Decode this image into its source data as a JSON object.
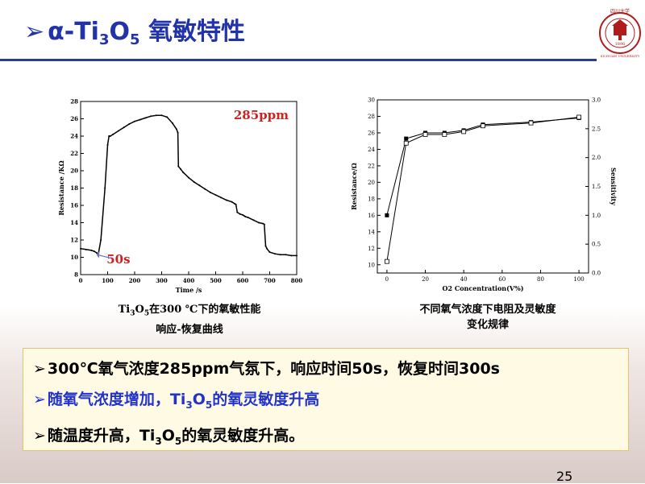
{
  "slide": {
    "title_arrow": "➢",
    "title_prefix": "α-Ti",
    "title_sub1": "3",
    "title_mid": "O",
    "title_sub2": "5",
    "title_suffix": " 氧敏特性",
    "page_number": "25"
  },
  "logo": {
    "text": "四川大学",
    "year": "1896",
    "ring_text": "SICHUAN UNIVERSITY"
  },
  "colors": {
    "title": "#2233aa",
    "rule": "#2b3d9b",
    "highlight": "#cc2222",
    "blue_text": "#2233cc",
    "box_bg": "#fefae3",
    "box_border": "#e8c070"
  },
  "captions": {
    "chart1": {
      "part1": "Ti",
      "sub1": "3",
      "part2": "O",
      "sub2": "5",
      "line1_rest": "在300 ℃下的氧敏性能",
      "line2": "响应-恢复曲线"
    },
    "chart2": {
      "line1": "不同氧气浓度下电阻及灵敏度",
      "line2": "变化规律"
    }
  },
  "bullets": [
    {
      "mark": "➢",
      "text": "300℃氧气浓度285ppm气氛下，响应时间50s，恢复时间300s"
    },
    {
      "mark": "➢",
      "text_a": "随氧气浓度增加，Ti",
      "sub_a": "3",
      "text_b": "O",
      "sub_b": "5",
      "text_c": "的氧灵敏度升高"
    },
    {
      "mark": "➢",
      "text_a": "随温度升高，Ti",
      "sub_a": "3",
      "text_b": "O",
      "sub_b": "5",
      "text_c": "的氧灵敏度升高。"
    }
  ],
  "chart_data": [
    {
      "type": "line",
      "xlabel": "Time /s",
      "ylabel": "Resistance /KΩ",
      "xlim": [
        0,
        800
      ],
      "ylim": [
        8,
        28
      ],
      "xticks": [
        0,
        100,
        200,
        300,
        400,
        500,
        600,
        700,
        800
      ],
      "yticks": [
        8,
        10,
        12,
        14,
        16,
        18,
        20,
        22,
        24,
        26,
        28
      ],
      "annotations": [
        {
          "text": "285ppm",
          "color": "#cc2222"
        },
        {
          "text": "50s",
          "color": "#cc2222"
        }
      ],
      "series": [
        {
          "x": [
            0,
            20,
            40,
            50,
            60,
            65,
            75,
            90,
            100,
            105,
            110,
            120,
            140,
            160,
            180,
            200,
            220,
            240,
            260,
            280,
            300,
            320,
            340,
            355,
            360,
            362,
            370,
            380,
            400,
            420,
            440,
            460,
            480,
            500,
            520,
            540,
            560,
            570,
            575,
            580,
            590,
            600,
            605,
            610,
            620,
            640,
            660,
            675,
            680,
            685,
            690,
            700,
            720,
            740,
            760,
            780,
            800
          ],
          "y": [
            11.0,
            10.9,
            10.8,
            10.7,
            10.5,
            10.3,
            12.0,
            18.0,
            23.0,
            24.0,
            24.0,
            24.2,
            24.6,
            25.0,
            25.4,
            25.7,
            25.9,
            26.1,
            26.3,
            26.4,
            26.4,
            26.2,
            25.5,
            24.8,
            24.4,
            20.5,
            20.2,
            19.8,
            19.2,
            18.7,
            18.3,
            17.9,
            17.5,
            17.2,
            16.9,
            16.6,
            16.4,
            16.2,
            16.1,
            15.2,
            15.0,
            14.9,
            14.8,
            14.7,
            14.6,
            14.3,
            14.0,
            13.9,
            13.8,
            11.3,
            11.0,
            10.6,
            10.4,
            10.3,
            10.3,
            10.2,
            10.2
          ]
        }
      ]
    },
    {
      "type": "line",
      "xlabel": "O2 Concentration(V%)",
      "ylabel": "Resistance/Ω",
      "y2label": "Sensitivity",
      "xlim": [
        -5,
        105
      ],
      "ylim": [
        9,
        30
      ],
      "y2lim": [
        0.0,
        3.0
      ],
      "xticks": [
        0,
        20,
        40,
        60,
        80,
        100
      ],
      "yticks": [
        10,
        12,
        14,
        16,
        18,
        20,
        22,
        24,
        26,
        28,
        30
      ],
      "y2ticks": [
        0.0,
        0.5,
        1.0,
        1.5,
        2.0,
        2.5,
        3.0
      ],
      "series": [
        {
          "name": "Resistance",
          "marker": "filled-square",
          "x": [
            0,
            10,
            20,
            30,
            40,
            50,
            75,
            100
          ],
          "y": [
            16.0,
            25.3,
            26.0,
            26.0,
            26.3,
            27.0,
            27.3,
            27.8
          ]
        },
        {
          "name": "Sensitivity",
          "marker": "open-square",
          "x": [
            0,
            10,
            20,
            30,
            40,
            50,
            75,
            100
          ],
          "y": [
            0.2,
            2.25,
            2.4,
            2.4,
            2.45,
            2.55,
            2.6,
            2.7
          ]
        }
      ]
    }
  ]
}
